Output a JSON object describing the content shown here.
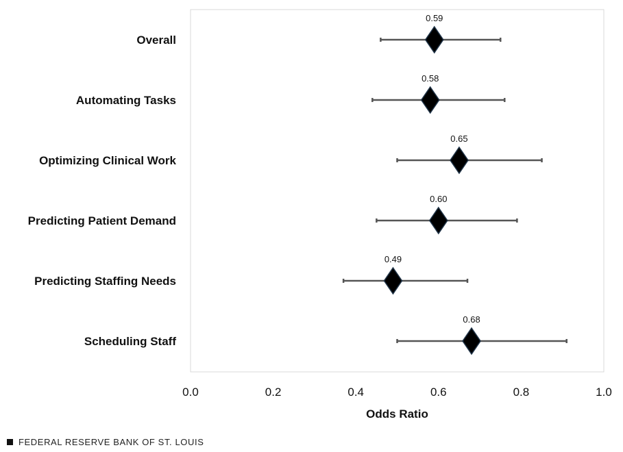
{
  "chart_data": {
    "type": "scatter",
    "subtype": "odds-ratio forest plot with confidence intervals",
    "categories": [
      "Overall",
      "Automating Tasks",
      "Optimizing Clinical Work",
      "Predicting Patient Demand",
      "Predicting Staffing Needs",
      "Scheduling Staff"
    ],
    "values": [
      0.59,
      0.58,
      0.65,
      0.6,
      0.49,
      0.68
    ],
    "value_labels": [
      "0.59",
      "0.58",
      "0.65",
      "0.60",
      "0.49",
      "0.68"
    ],
    "ci_low": [
      0.46,
      0.44,
      0.5,
      0.45,
      0.37,
      0.5
    ],
    "ci_high": [
      0.75,
      0.76,
      0.85,
      0.79,
      0.67,
      0.91
    ],
    "xlabel": "Odds Ratio",
    "ylabel": "",
    "xlim": [
      0.0,
      1.0
    ],
    "xticks": [
      0.0,
      0.2,
      0.4,
      0.6,
      0.8,
      1.0
    ],
    "xtick_labels": [
      "0.0",
      "0.2",
      "0.4",
      "0.6",
      "0.8",
      "1.0"
    ],
    "marker": "diamond",
    "colors": {
      "marker": "#000000",
      "marker_edge": "#1f3347",
      "whisker": "#555555",
      "frame": "#d9d9d9"
    }
  },
  "source": {
    "label": "FEDERAL RESERVE BANK OF ST. LOUIS",
    "icon": "black-square-icon"
  }
}
